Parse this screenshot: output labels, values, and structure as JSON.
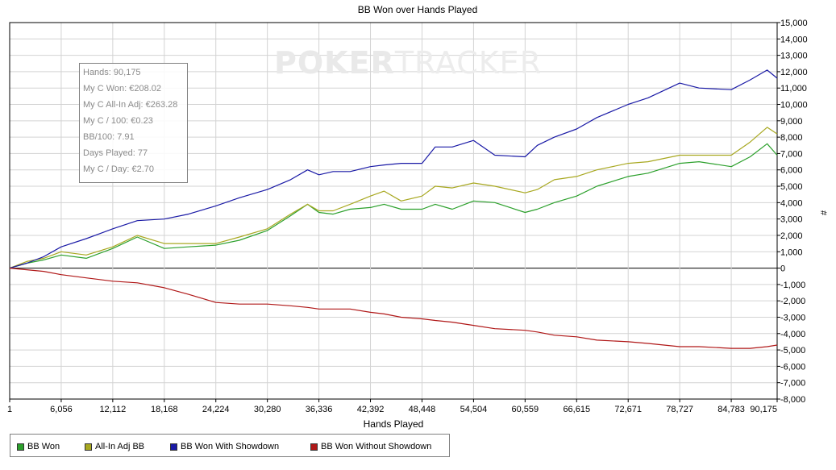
{
  "chart_data": {
    "type": "line",
    "title": "BB Won over Hands Played",
    "xlabel": "Hands Played",
    "ylabel": "#",
    "xlim": [
      1,
      90175
    ],
    "ylim": [
      -8000,
      15000
    ],
    "x_ticks": [
      "1",
      "6,056",
      "12,112",
      "18,168",
      "24,224",
      "30,280",
      "36,336",
      "42,392",
      "48,448",
      "54,504",
      "60,559",
      "66,615",
      "72,671",
      "78,727",
      "84,783",
      "90,175"
    ],
    "y_ticks": [
      "15,000",
      "14,000",
      "13,000",
      "12,000",
      "11,000",
      "10,000",
      "9,000",
      "8,000",
      "7,000",
      "6,000",
      "5,000",
      "4,000",
      "3,000",
      "2,000",
      "1,000",
      "0",
      "-1,000",
      "-2,000",
      "-3,000",
      "-4,000",
      "-5,000",
      "-6,000",
      "-7,000",
      "-8,000"
    ],
    "grid": true,
    "legend_position": "bottom-left",
    "series": [
      {
        "name": "BB Won",
        "color": "#2ca02c",
        "x": [
          1,
          2000,
          4000,
          6056,
          9000,
          12112,
          15000,
          18168,
          21000,
          24224,
          27000,
          30280,
          33000,
          35000,
          36336,
          38000,
          40000,
          42392,
          44000,
          46000,
          48448,
          50000,
          52000,
          54504,
          57000,
          60559,
          62000,
          64000,
          66615,
          69000,
          72671,
          75000,
          78727,
          81000,
          84783,
          87000,
          89000,
          90175
        ],
        "values": [
          0,
          300,
          500,
          800,
          600,
          1200,
          1900,
          1200,
          1300,
          1400,
          1700,
          2300,
          3200,
          3900,
          3400,
          3300,
          3600,
          3700,
          3900,
          3600,
          3600,
          3900,
          3600,
          4100,
          4000,
          3400,
          3600,
          4000,
          4400,
          5000,
          5600,
          5800,
          6400,
          6500,
          6200,
          6800,
          7600,
          6900
        ]
      },
      {
        "name": "All-In Adj BB",
        "color": "#a8a820",
        "x": [
          1,
          2000,
          4000,
          6056,
          9000,
          12112,
          15000,
          18168,
          21000,
          24224,
          27000,
          30280,
          33000,
          35000,
          36336,
          38000,
          40000,
          42392,
          44000,
          46000,
          48448,
          50000,
          52000,
          54504,
          57000,
          60559,
          62000,
          64000,
          66615,
          69000,
          72671,
          75000,
          78727,
          81000,
          84783,
          87000,
          89000,
          90175
        ],
        "values": [
          0,
          400,
          600,
          1000,
          800,
          1300,
          2000,
          1500,
          1500,
          1500,
          1900,
          2400,
          3300,
          3900,
          3500,
          3500,
          3900,
          4400,
          4700,
          4100,
          4400,
          5000,
          4900,
          5200,
          5000,
          4600,
          4800,
          5400,
          5600,
          6000,
          6400,
          6500,
          6900,
          6900,
          6900,
          7700,
          8600,
          8200
        ]
      },
      {
        "name": "BB Won With Showdown",
        "color": "#1a1aa6",
        "x": [
          1,
          2000,
          4000,
          6056,
          9000,
          12112,
          15000,
          18168,
          21000,
          24224,
          27000,
          30280,
          33000,
          35000,
          36336,
          38000,
          40000,
          42392,
          44000,
          46000,
          48448,
          50000,
          52000,
          54504,
          57000,
          60559,
          62000,
          64000,
          66615,
          69000,
          72671,
          75000,
          78727,
          81000,
          84783,
          87000,
          89000,
          90175
        ],
        "values": [
          0,
          300,
          700,
          1300,
          1800,
          2400,
          2900,
          3000,
          3300,
          3800,
          4300,
          4800,
          5400,
          6000,
          5700,
          5900,
          5900,
          6200,
          6300,
          6400,
          6400,
          7400,
          7400,
          7800,
          6900,
          6800,
          7500,
          8000,
          8500,
          9200,
          10000,
          10400,
          11300,
          11000,
          10900,
          11500,
          12100,
          11600
        ]
      },
      {
        "name": "BB Won Without Showdown",
        "color": "#b01818",
        "x": [
          1,
          2000,
          4000,
          6056,
          9000,
          12112,
          15000,
          18168,
          21000,
          24224,
          27000,
          30280,
          33000,
          35000,
          36336,
          38000,
          40000,
          42392,
          44000,
          46000,
          48448,
          50000,
          52000,
          54504,
          57000,
          60559,
          62000,
          64000,
          66615,
          69000,
          72671,
          75000,
          78727,
          81000,
          84783,
          87000,
          89000,
          90175
        ],
        "values": [
          0,
          -100,
          -200,
          -400,
          -600,
          -800,
          -900,
          -1200,
          -1600,
          -2100,
          -2200,
          -2200,
          -2300,
          -2400,
          -2500,
          -2500,
          -2500,
          -2700,
          -2800,
          -3000,
          -3100,
          -3200,
          -3300,
          -3500,
          -3700,
          -3800,
          -3900,
          -4100,
          -4200,
          -4400,
          -4500,
          -4600,
          -4800,
          -4800,
          -4900,
          -4900,
          -4800,
          -4700
        ]
      }
    ]
  },
  "legend": {
    "items": [
      {
        "label": "BB Won",
        "color": "#2ca02c"
      },
      {
        "label": "All-In Adj BB",
        "color": "#a8a820"
      },
      {
        "label": "BB Won With Showdown",
        "color": "#1a1aa6"
      },
      {
        "label": "BB Won Without Showdown",
        "color": "#b01818"
      }
    ]
  },
  "stats": {
    "hands": "Hands: 90,175",
    "c_won": "My C Won: €208.02",
    "c_allin_adj": "My C All-In Adj: €263.28",
    "c_per_100": "My C / 100: €0.23",
    "bb_per_100": "BB/100: 7.91",
    "days_played": "Days Played: 77",
    "c_per_day": "My C / Day: €2.70"
  },
  "watermark": {
    "part1": "POKER",
    "part2": "TRACKER"
  }
}
